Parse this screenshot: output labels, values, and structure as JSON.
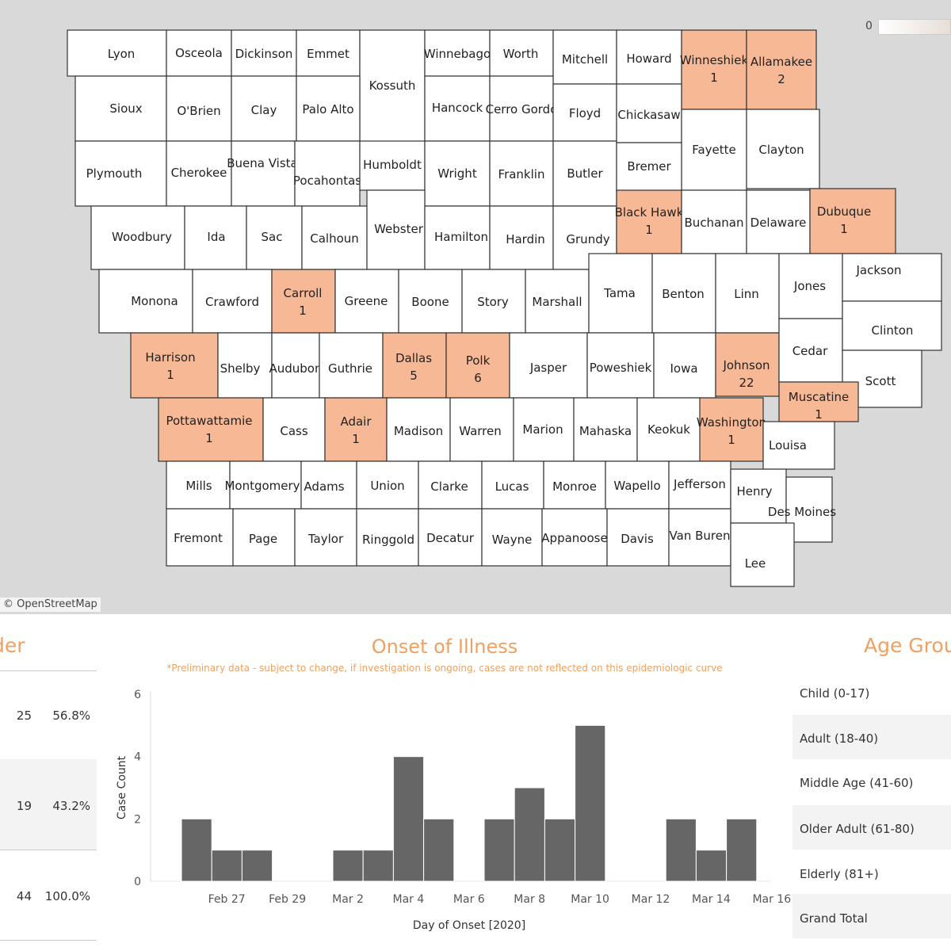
{
  "map": {
    "attribution": "© OpenStreetMap",
    "legend_min": "0",
    "colors": {
      "highlight": "#f7b896",
      "normal": "#ffffff",
      "border": "#333333",
      "background": "#d9d9d9"
    },
    "counties": [
      {
        "name": "Lyon"
      },
      {
        "name": "Osceola"
      },
      {
        "name": "Dickinson"
      },
      {
        "name": "Emmet"
      },
      {
        "name": "Kossuth"
      },
      {
        "name": "Winnebago"
      },
      {
        "name": "Worth"
      },
      {
        "name": "Mitchell"
      },
      {
        "name": "Howard"
      },
      {
        "name": "Winneshiek",
        "count": "1"
      },
      {
        "name": "Allamakee",
        "count": "2"
      },
      {
        "name": "Sioux"
      },
      {
        "name": "O'Brien"
      },
      {
        "name": "Clay"
      },
      {
        "name": "Palo Alto"
      },
      {
        "name": "Hancock"
      },
      {
        "name": "Cerro Gordo"
      },
      {
        "name": "Floyd"
      },
      {
        "name": "Chickasaw"
      },
      {
        "name": "Fayette"
      },
      {
        "name": "Clayton"
      },
      {
        "name": "Plymouth"
      },
      {
        "name": "Cherokee"
      },
      {
        "name": "Buena Vista"
      },
      {
        "name": "Pocahontas"
      },
      {
        "name": "Humboldt"
      },
      {
        "name": "Wright"
      },
      {
        "name": "Franklin"
      },
      {
        "name": "Butler"
      },
      {
        "name": "Bremer"
      },
      {
        "name": "Woodbury"
      },
      {
        "name": "Ida"
      },
      {
        "name": "Sac"
      },
      {
        "name": "Calhoun"
      },
      {
        "name": "Webster"
      },
      {
        "name": "Hamilton"
      },
      {
        "name": "Hardin"
      },
      {
        "name": "Grundy"
      },
      {
        "name": "Black Hawk",
        "count": "1"
      },
      {
        "name": "Buchanan"
      },
      {
        "name": "Delaware"
      },
      {
        "name": "Dubuque",
        "count": "1"
      },
      {
        "name": "Monona"
      },
      {
        "name": "Crawford"
      },
      {
        "name": "Carroll",
        "count": "1"
      },
      {
        "name": "Greene"
      },
      {
        "name": "Boone"
      },
      {
        "name": "Story"
      },
      {
        "name": "Marshall"
      },
      {
        "name": "Tama"
      },
      {
        "name": "Benton"
      },
      {
        "name": "Linn"
      },
      {
        "name": "Jones"
      },
      {
        "name": "Jackson"
      },
      {
        "name": "Harrison",
        "count": "1"
      },
      {
        "name": "Shelby"
      },
      {
        "name": "Audubon"
      },
      {
        "name": "Guthrie"
      },
      {
        "name": "Dallas",
        "count": "5"
      },
      {
        "name": "Polk",
        "count": "6"
      },
      {
        "name": "Jasper"
      },
      {
        "name": "Poweshiek"
      },
      {
        "name": "Iowa"
      },
      {
        "name": "Johnson",
        "count": "22"
      },
      {
        "name": "Cedar"
      },
      {
        "name": "Clinton"
      },
      {
        "name": "Scott"
      },
      {
        "name": "Muscatine",
        "count": "1"
      },
      {
        "name": "Pottawattamie",
        "count": "1"
      },
      {
        "name": "Cass"
      },
      {
        "name": "Adair",
        "count": "1"
      },
      {
        "name": "Madison"
      },
      {
        "name": "Warren"
      },
      {
        "name": "Marion"
      },
      {
        "name": "Mahaska"
      },
      {
        "name": "Keokuk"
      },
      {
        "name": "Washington",
        "count": "1"
      },
      {
        "name": "Louisa"
      },
      {
        "name": "Mills"
      },
      {
        "name": "Montgomery"
      },
      {
        "name": "Adams"
      },
      {
        "name": "Union"
      },
      {
        "name": "Clarke"
      },
      {
        "name": "Lucas"
      },
      {
        "name": "Monroe"
      },
      {
        "name": "Wapello"
      },
      {
        "name": "Jefferson"
      },
      {
        "name": "Henry"
      },
      {
        "name": "Des Moines"
      },
      {
        "name": "Fremont"
      },
      {
        "name": "Page"
      },
      {
        "name": "Taylor"
      },
      {
        "name": "Ringgold"
      },
      {
        "name": "Decatur"
      },
      {
        "name": "Wayne"
      },
      {
        "name": "Appanoose"
      },
      {
        "name": "Davis"
      },
      {
        "name": "Van Buren"
      },
      {
        "name": "Lee"
      }
    ]
  },
  "gender": {
    "title": "der",
    "rows": [
      {
        "count": "25",
        "pct": "56.8%"
      },
      {
        "count": "19",
        "pct": "43.2%"
      },
      {
        "count": "44",
        "pct": "100.0%"
      }
    ]
  },
  "onset": {
    "title": "Onset of Illness",
    "note": "*Preliminary data - subject to change, if investigation is ongoing, cases are not reflected on this epidemiologic curve"
  },
  "chart_data": {
    "type": "bar",
    "title": "Onset of Illness",
    "xlabel": "Day of Onset [2020]",
    "ylabel": "Case Count",
    "ylim": [
      0,
      6
    ],
    "yticks": [
      "0",
      "2",
      "4",
      "6"
    ],
    "categories": [
      "Feb 26",
      "Feb 27",
      "Feb 28",
      "Feb 29",
      "Mar 1",
      "Mar 2",
      "Mar 3",
      "Mar 4",
      "Mar 5",
      "Mar 6",
      "Mar 7",
      "Mar 8",
      "Mar 9",
      "Mar 10",
      "Mar 11",
      "Mar 12",
      "Mar 13",
      "Mar 14",
      "Mar 15",
      "Mar 16"
    ],
    "values": [
      2,
      1,
      1,
      0,
      0,
      1,
      1,
      4,
      2,
      0,
      2,
      3,
      2,
      5,
      0,
      0,
      2,
      1,
      2,
      0
    ],
    "tick_labels": [
      "Feb 27",
      "Feb 29",
      "Mar 2",
      "Mar 4",
      "Mar 6",
      "Mar 8",
      "Mar 10",
      "Mar 12",
      "Mar 14",
      "Mar 16"
    ],
    "grid": false,
    "bar_color": "#666666"
  },
  "age": {
    "title": "Age Grou",
    "rows": [
      {
        "label": "Child (0-17)"
      },
      {
        "label": "Adult (18-40)"
      },
      {
        "label": "Middle Age (41-60)"
      },
      {
        "label": "Older Adult (61-80)"
      },
      {
        "label": "Elderly (81+)"
      },
      {
        "label": "Grand Total"
      }
    ]
  }
}
